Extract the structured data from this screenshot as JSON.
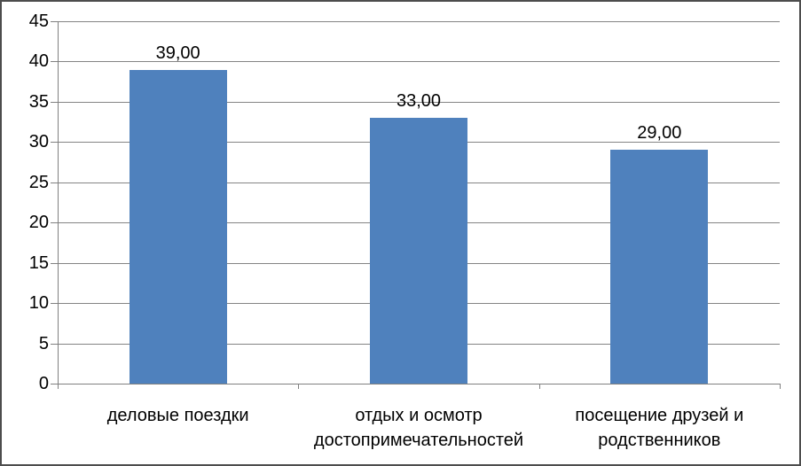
{
  "chart": {
    "background": "#FFFFFF",
    "border_color": "#4D4D4D",
    "bar_color": "#4F81BD",
    "gridline_color": "#848484",
    "axis_color": "#808080",
    "text_color": "#000000"
  },
  "chart_data": {
    "type": "bar",
    "title": "",
    "xlabel": "",
    "ylabel": "",
    "categories": [
      "деловые поездки",
      "отдых и осмотр достопримечательностей",
      "посещение друзей и родственников"
    ],
    "values": [
      39,
      33,
      29
    ],
    "value_labels": [
      "39,00",
      "33,00",
      "29,00"
    ],
    "ylim": [
      0,
      45
    ],
    "yticks": [
      "0",
      "5",
      "10",
      "15",
      "20",
      "25",
      "30",
      "35",
      "40",
      "45"
    ],
    "grid": true,
    "legend": false
  }
}
